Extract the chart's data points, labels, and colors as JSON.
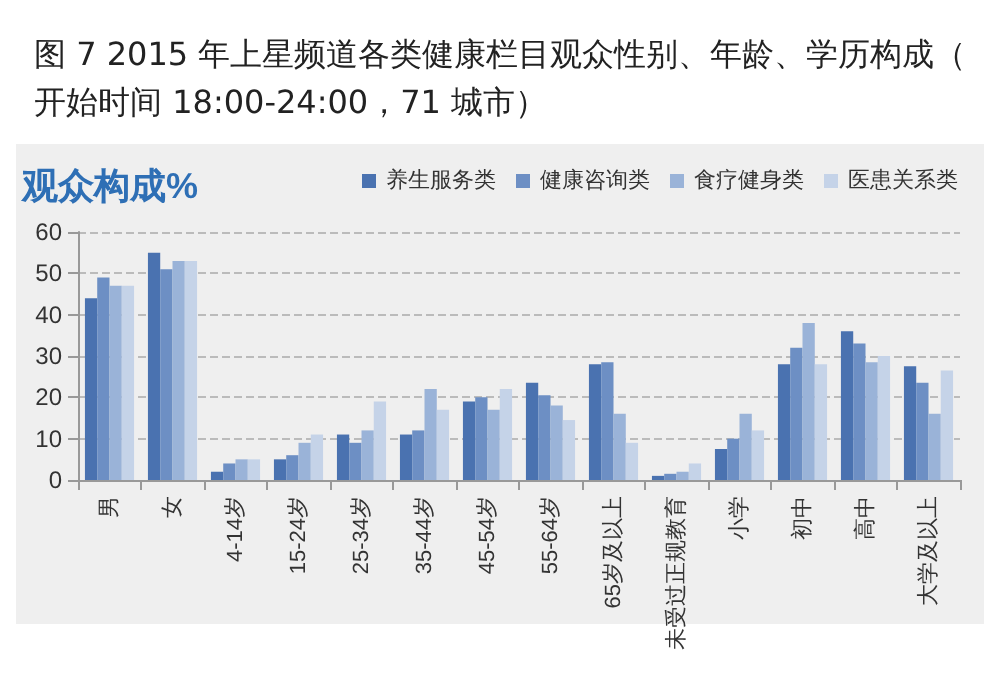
{
  "chart_data": {
    "type": "bar",
    "title": "图 7 2015 年上星频道各类健康栏目观众性别、年龄、学历构成（开始时间 18:00-24:00，71 城市）",
    "ylabel": "观众构成%",
    "categories": [
      "男",
      "女",
      "4-14岁",
      "15-24岁",
      "25-34岁",
      "35-44岁",
      "45-54岁",
      "55-64岁",
      "65岁及以上",
      "未受过正规教育",
      "小学",
      "初中",
      "高中",
      "大学及以上"
    ],
    "series": [
      {
        "name": "养生服务类",
        "color": "#4a72b0",
        "values": [
          44,
          55,
          2,
          5,
          11,
          11,
          19,
          23.5,
          28,
          1,
          7.5,
          28,
          36,
          27.5
        ]
      },
      {
        "name": "健康咨询类",
        "color": "#6d8fc4",
        "values": [
          49,
          51,
          4,
          6,
          9,
          12,
          20,
          20.5,
          28.5,
          1.5,
          10,
          32,
          33,
          23.5
        ]
      },
      {
        "name": "食疗健身类",
        "color": "#9ab3d8",
        "values": [
          47,
          53,
          5,
          9,
          12,
          22,
          17,
          18,
          16,
          2,
          16,
          38,
          28.5,
          16
        ]
      },
      {
        "name": "医患关系类",
        "color": "#c5d3e8",
        "values": [
          47,
          53,
          5,
          11,
          19,
          17,
          22,
          14.5,
          9,
          4,
          12,
          28,
          30,
          26.5
        ]
      }
    ],
    "ylim": [
      0,
      60
    ],
    "yticks": [
      0,
      10,
      20,
      30,
      40,
      50,
      60
    ],
    "grid": "y",
    "legend": "top right"
  }
}
